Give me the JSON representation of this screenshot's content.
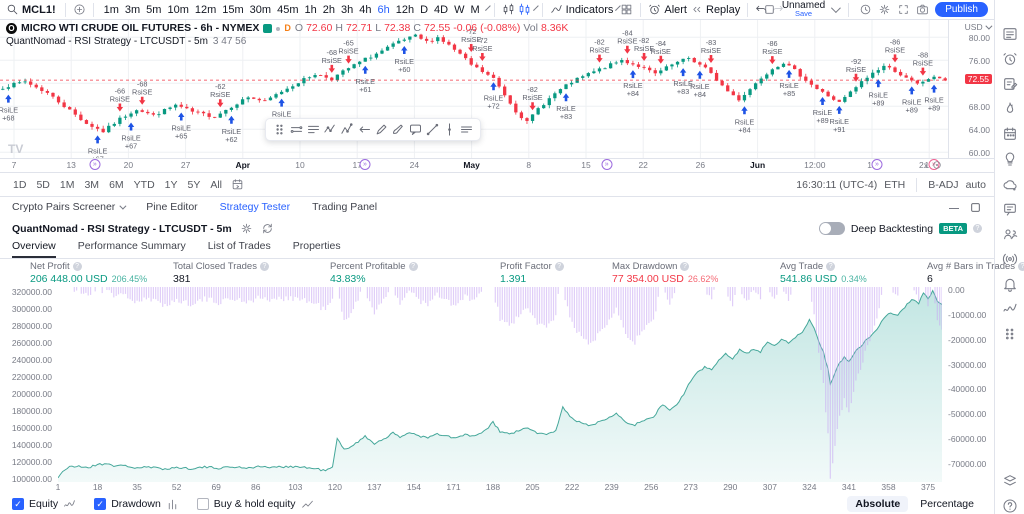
{
  "toolbar": {
    "symbol": "MCL1!",
    "intervals": [
      "1m",
      "3m",
      "5m",
      "10m",
      "12m",
      "15m",
      "30m",
      "45m",
      "1h",
      "2h",
      "3h",
      "4h",
      "6h",
      "12h",
      "D",
      "4D",
      "W",
      "M"
    ],
    "active_interval": "6h",
    "indicators_label": "Indicators",
    "alert_label": "Alert",
    "replay_label": "Replay",
    "layout_name": "Unnamed",
    "save_label": "Save",
    "publish_label": "Publish"
  },
  "chart": {
    "legend": {
      "title": "MICRO WTI CRUDE OIL FUTURES - 6h - NYMEX",
      "delayed_badge": "D",
      "ohlc": [
        [
          "O",
          "72.60"
        ],
        [
          "H",
          "72.71"
        ],
        [
          "L",
          "72.38"
        ],
        [
          "C",
          "72.55"
        ]
      ],
      "change": "-0.06 (-0.08%)",
      "vol_label": "Vol",
      "vol_value": "8.36K",
      "strategy_line": "QuantNomad - RSI Strategy - LTCUSDT - 5m",
      "strategy_stats": "3 47 56"
    },
    "price_axis": {
      "currency": "USD",
      "last_price": "72.55",
      "scale_label": "2x"
    },
    "timeline_markers": [
      {
        "f": 0.1,
        "tone": "purple"
      },
      {
        "f": 0.385,
        "tone": "purple"
      },
      {
        "f": 0.64,
        "tone": "purple"
      },
      {
        "f": 0.925,
        "tone": "purple"
      },
      {
        "f": 0.985,
        "tone": "pink"
      }
    ]
  },
  "range_row": {
    "ranges": [
      "1D",
      "5D",
      "1M",
      "3M",
      "6M",
      "YTD",
      "1Y",
      "5Y",
      "All"
    ],
    "clock": "16:30:11 (UTC-4)",
    "session": "ETH",
    "adjustment": "B-ADJ",
    "scale_mode": "auto"
  },
  "panel": {
    "tabs": [
      {
        "label": "Crypto Pairs Screener",
        "chevron": true,
        "active": false
      },
      {
        "label": "Pine Editor",
        "active": false
      },
      {
        "label": "Strategy Tester",
        "active": true
      },
      {
        "label": "Trading Panel",
        "active": false
      }
    ],
    "strategy_title": "QuantNomad - RSI Strategy - LTCUSDT - 5m",
    "deep_backtesting_label": "Deep Backtesting",
    "beta_label": "BETA",
    "subtabs": [
      "Overview",
      "Performance Summary",
      "List of Trades",
      "Properties"
    ],
    "metrics": [
      {
        "label": "Net Profit",
        "value": "206 448.00 USD",
        "pct": "206.45%",
        "tone": "pos"
      },
      {
        "label": "Total Closed Trades",
        "value": "381",
        "pct": "",
        "tone": "neu"
      },
      {
        "label": "Percent Profitable",
        "value": "43.83%",
        "pct": "",
        "tone": "pos"
      },
      {
        "label": "Profit Factor",
        "value": "1.391",
        "pct": "",
        "tone": "pos"
      },
      {
        "label": "Max Drawdown",
        "value": "77 354.00 USD",
        "pct": "26.62%",
        "tone": "neg"
      },
      {
        "label": "Avg Trade",
        "value": "541.86 USD",
        "pct": "0.34%",
        "tone": "pos"
      },
      {
        "label": "Avg # Bars in Trades",
        "value": "6",
        "pct": "",
        "tone": "neu"
      }
    ]
  },
  "equity_footer": {
    "legend": [
      {
        "label": "Equity",
        "checked": true,
        "icon": "wave"
      },
      {
        "label": "Drawdown",
        "checked": true,
        "icon": "bars"
      },
      {
        "label": "Buy & hold equity",
        "checked": false,
        "icon": "line"
      }
    ],
    "absolute": "Absolute",
    "percentage": "Percentage"
  },
  "sidebar_icons": [
    "watchlist",
    "alarm",
    "notes",
    "hotlist",
    "calendar",
    "ideas",
    "cloud-chat",
    "conversation",
    "community",
    "broadcast",
    "bell",
    "wave",
    "grid-dots"
  ],
  "sidebar_bottom_icons": [
    "layers",
    "help"
  ],
  "colors": {
    "accent": "#2962ff",
    "up": "#089981",
    "down": "#f23645",
    "equity": "#45a79a",
    "equity_fill": "#bfe3dd",
    "drawdown": "#c7a5f2",
    "grid": "#eef0f3"
  },
  "chart_data": [
    {
      "type": "candlestick",
      "title": "MICRO WTI CRUDE OIL FUTURES - 6h - NYMEX",
      "ohlc_last": {
        "o": 72.6,
        "h": 72.71,
        "l": 72.38,
        "c": 72.55,
        "change_pct": -0.08,
        "volume": "8.36K"
      },
      "last_price": 72.55,
      "price_ticks": [
        80.0,
        76.0,
        68.0,
        64.0,
        60.0
      ],
      "price_range": [
        59,
        83
      ],
      "x_ticks": [
        "7",
        "13",
        "20",
        "27",
        "Apr",
        "10",
        "17",
        "24",
        "May",
        "8",
        "15",
        "22",
        "26",
        "Jun",
        "12:00",
        "12",
        "19"
      ],
      "num_candles": 170,
      "price_waypoints": [
        [
          0,
          71.3
        ],
        [
          4,
          72.3
        ],
        [
          8,
          70.3
        ],
        [
          12,
          67.3
        ],
        [
          15,
          65.0
        ],
        [
          18,
          63.6
        ],
        [
          21,
          65.8
        ],
        [
          24,
          67.5
        ],
        [
          27,
          66.4
        ],
        [
          31,
          68.2
        ],
        [
          34,
          67.0
        ],
        [
          38,
          66.2
        ],
        [
          41,
          68.0
        ],
        [
          44,
          69.6
        ],
        [
          47,
          68.8
        ],
        [
          50,
          70.6
        ],
        [
          53,
          72.2
        ],
        [
          56,
          73.6
        ],
        [
          59,
          72.8
        ],
        [
          62,
          74.6
        ],
        [
          65,
          76.2
        ],
        [
          68,
          77.6
        ],
        [
          71,
          79.2
        ],
        [
          74,
          80.2
        ],
        [
          76,
          79.2
        ],
        [
          78,
          80.0
        ],
        [
          80,
          78.6
        ],
        [
          82,
          77.0
        ],
        [
          84,
          75.2
        ],
        [
          86,
          74.0
        ],
        [
          88,
          72.8
        ],
        [
          90,
          70.0
        ],
        [
          92,
          67.2
        ],
        [
          94,
          65.2
        ],
        [
          96,
          67.6
        ],
        [
          99,
          70.2
        ],
        [
          102,
          72.2
        ],
        [
          105,
          73.6
        ],
        [
          108,
          74.8
        ],
        [
          111,
          76.0
        ],
        [
          114,
          75.0
        ],
        [
          117,
          73.6
        ],
        [
          120,
          75.2
        ],
        [
          123,
          76.4
        ],
        [
          126,
          74.6
        ],
        [
          128,
          72.6
        ],
        [
          130,
          70.6
        ],
        [
          132,
          69.2
        ],
        [
          134,
          71.0
        ],
        [
          136,
          73.0
        ],
        [
          138,
          74.6
        ],
        [
          140,
          75.6
        ],
        [
          142,
          74.2
        ],
        [
          144,
          72.6
        ],
        [
          146,
          71.0
        ],
        [
          148,
          69.8
        ],
        [
          150,
          68.6
        ],
        [
          152,
          70.4
        ],
        [
          154,
          72.2
        ],
        [
          156,
          73.8
        ],
        [
          158,
          75.0
        ],
        [
          160,
          74.2
        ],
        [
          162,
          72.8
        ],
        [
          164,
          71.8
        ],
        [
          166,
          72.8
        ],
        [
          168,
          73.0
        ],
        [
          169,
          72.55
        ]
      ],
      "signal_labels": {
        "long": "RsiLE",
        "short": "RsiSE"
      },
      "signals": [
        {
          "i": 1,
          "side": "long",
          "value": "+68"
        },
        {
          "i": 17,
          "side": "long",
          "value": "+67"
        },
        {
          "i": 23,
          "side": "long",
          "value": "+67"
        },
        {
          "i": 32,
          "side": "long",
          "value": "+65"
        },
        {
          "i": 41,
          "side": "long",
          "value": "+62"
        },
        {
          "i": 50,
          "side": "long",
          "value": "+61"
        },
        {
          "i": 65,
          "side": "long",
          "value": "+61"
        },
        {
          "i": 72,
          "side": "long",
          "value": "+60"
        },
        {
          "i": 88,
          "side": "long",
          "value": "+72"
        },
        {
          "i": 101,
          "side": "long",
          "value": "+83"
        },
        {
          "i": 113,
          "side": "long",
          "value": "+84"
        },
        {
          "i": 122,
          "side": "long",
          "value": "+83"
        },
        {
          "i": 125,
          "side": "long",
          "value": "+84"
        },
        {
          "i": 133,
          "side": "long",
          "value": "+84"
        },
        {
          "i": 141,
          "side": "long",
          "value": "+85"
        },
        {
          "i": 147,
          "side": "long",
          "value": "+89"
        },
        {
          "i": 150,
          "side": "long",
          "value": "+91"
        },
        {
          "i": 157,
          "side": "long",
          "value": "+89"
        },
        {
          "i": 163,
          "side": "long",
          "value": "+89"
        },
        {
          "i": 167,
          "side": "long",
          "value": "+89"
        },
        {
          "i": 21,
          "side": "short",
          "value": "-66"
        },
        {
          "i": 25,
          "side": "short",
          "value": "-68"
        },
        {
          "i": 39,
          "side": "short",
          "value": "-62"
        },
        {
          "i": 59,
          "side": "short",
          "value": "-68"
        },
        {
          "i": 62,
          "side": "short",
          "value": "-65"
        },
        {
          "i": 84,
          "side": "short",
          "value": "-72"
        },
        {
          "i": 86,
          "side": "short",
          "value": "-72"
        },
        {
          "i": 95,
          "side": "short",
          "value": "-82"
        },
        {
          "i": 107,
          "side": "short",
          "value": "-82"
        },
        {
          "i": 112,
          "side": "short",
          "value": "-84"
        },
        {
          "i": 115,
          "side": "short",
          "value": "-82"
        },
        {
          "i": 118,
          "side": "short",
          "value": "-84"
        },
        {
          "i": 127,
          "side": "short",
          "value": "-83"
        },
        {
          "i": 138,
          "side": "short",
          "value": "-86"
        },
        {
          "i": 153,
          "side": "short",
          "value": "-92"
        },
        {
          "i": 160,
          "side": "short",
          "value": "-86"
        },
        {
          "i": 165,
          "side": "short",
          "value": "-88"
        }
      ]
    },
    {
      "type": "area+bar",
      "series": [
        {
          "name": "Equity",
          "type": "area",
          "color": "#45a79a"
        },
        {
          "name": "Drawdown",
          "type": "bar",
          "color": "#c7a5f2"
        }
      ],
      "n": 381,
      "x_ticks": [
        1,
        18,
        35,
        52,
        69,
        86,
        103,
        120,
        137,
        154,
        171,
        188,
        205,
        222,
        239,
        256,
        273,
        290,
        307,
        324,
        341,
        358,
        375
      ],
      "y_left": {
        "min": 100000,
        "max": 320000,
        "step": 20000
      },
      "y_right": {
        "min": -70000,
        "max": 0,
        "step": 10000
      },
      "equity_waypoints": [
        [
          1,
          100000
        ],
        [
          3,
          108000
        ],
        [
          6,
          112500
        ],
        [
          10,
          113500
        ],
        [
          14,
          112000
        ],
        [
          18,
          115500
        ],
        [
          22,
          117000
        ],
        [
          26,
          113500
        ],
        [
          30,
          114500
        ],
        [
          34,
          111500
        ],
        [
          40,
          112500
        ],
        [
          46,
          110500
        ],
        [
          52,
          112000
        ],
        [
          58,
          111000
        ],
        [
          64,
          112500
        ],
        [
          70,
          111500
        ],
        [
          76,
          112800
        ],
        [
          82,
          111800
        ],
        [
          88,
          113200
        ],
        [
          94,
          112000
        ],
        [
          100,
          113500
        ],
        [
          106,
          112500
        ],
        [
          112,
          110500
        ],
        [
          116,
          108500
        ],
        [
          119,
          112000
        ],
        [
          121,
          146000
        ],
        [
          124,
          133000
        ],
        [
          128,
          139000
        ],
        [
          133,
          148500
        ],
        [
          137,
          140500
        ],
        [
          141,
          146000
        ],
        [
          145,
          152500
        ],
        [
          148,
          147500
        ],
        [
          152,
          154000
        ],
        [
          156,
          149500
        ],
        [
          160,
          147000
        ],
        [
          164,
          151500
        ],
        [
          168,
          149000
        ],
        [
          172,
          146500
        ],
        [
          176,
          151000
        ],
        [
          180,
          148500
        ],
        [
          184,
          154000
        ],
        [
          188,
          165500
        ],
        [
          191,
          154500
        ],
        [
          195,
          151500
        ],
        [
          199,
          155500
        ],
        [
          203,
          158500
        ],
        [
          207,
          153000
        ],
        [
          211,
          150500
        ],
        [
          215,
          156000
        ],
        [
          218,
          184000
        ],
        [
          221,
          172000
        ],
        [
          225,
          165500
        ],
        [
          229,
          161500
        ],
        [
          233,
          165000
        ],
        [
          237,
          170500
        ],
        [
          241,
          176500
        ],
        [
          245,
          166000
        ],
        [
          249,
          162500
        ],
        [
          253,
          167500
        ],
        [
          257,
          172000
        ],
        [
          261,
          187000
        ],
        [
          264,
          179500
        ],
        [
          267,
          186000
        ],
        [
          270,
          199000
        ],
        [
          273,
          214000
        ],
        [
          276,
          224000
        ],
        [
          279,
          231000
        ],
        [
          282,
          227000
        ],
        [
          285,
          238000
        ],
        [
          288,
          247000
        ],
        [
          291,
          241000
        ],
        [
          294,
          251000
        ],
        [
          297,
          246500
        ],
        [
          300,
          252000
        ],
        [
          303,
          248500
        ],
        [
          306,
          260000
        ],
        [
          309,
          256500
        ],
        [
          312,
          263500
        ],
        [
          315,
          259500
        ],
        [
          318,
          266000
        ],
        [
          321,
          271500
        ],
        [
          324,
          286500
        ],
        [
          326,
          276000
        ],
        [
          328,
          262000
        ],
        [
          330,
          248000
        ],
        [
          332,
          228000
        ],
        [
          333,
          211500
        ],
        [
          335,
          224000
        ],
        [
          337,
          235500
        ],
        [
          339,
          242000
        ],
        [
          341,
          237500
        ],
        [
          344,
          250000
        ],
        [
          347,
          258000
        ],
        [
          350,
          266500
        ],
        [
          353,
          276000
        ],
        [
          356,
          287000
        ],
        [
          359,
          295500
        ],
        [
          362,
          291000
        ],
        [
          365,
          301500
        ],
        [
          368,
          311000
        ],
        [
          371,
          306000
        ],
        [
          373,
          317000
        ],
        [
          375,
          311500
        ],
        [
          377,
          319500
        ],
        [
          379,
          309000
        ],
        [
          381,
          304500
        ]
      ]
    }
  ]
}
